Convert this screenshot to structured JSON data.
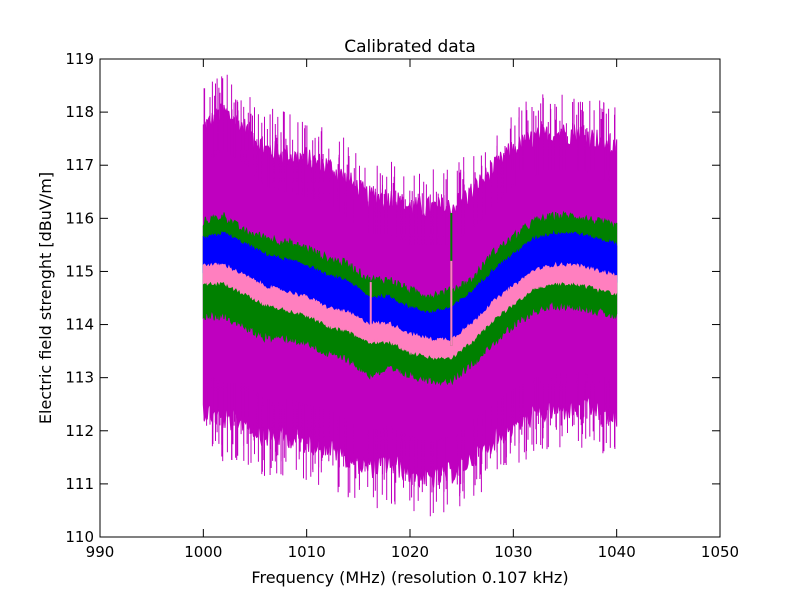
{
  "chart_data": {
    "type": "area",
    "title": "Calibrated data",
    "xlabel": "Frequency (MHz) (resolution 0.107 kHz)",
    "ylabel": "Electric field strenght  [dBuV/m]",
    "xlim": [
      990,
      1050
    ],
    "ylim": [
      110,
      119
    ],
    "xticks": [
      "990",
      "1000",
      "1010",
      "1020",
      "1030",
      "1040",
      "1050"
    ],
    "yticks": [
      "110",
      "111",
      "112",
      "113",
      "114",
      "115",
      "116",
      "117",
      "118",
      "119"
    ],
    "grid": false,
    "x": [
      1000,
      1002,
      1004,
      1006,
      1008,
      1010,
      1012,
      1014,
      1016,
      1018,
      1020,
      1022,
      1024,
      1026,
      1028,
      1030,
      1032,
      1034,
      1036,
      1038,
      1040
    ],
    "series": [
      {
        "color": "#bf00bf",
        "upper": [
          117.6,
          117.9,
          117.6,
          117.2,
          117.1,
          117.0,
          116.9,
          116.6,
          116.3,
          116.3,
          116.1,
          116.1,
          116.1,
          116.4,
          116.8,
          117.2,
          117.4,
          117.5,
          117.5,
          117.4,
          117.2
        ],
        "lower": [
          112.5,
          112.3,
          112.3,
          112.0,
          112.0,
          111.9,
          111.8,
          111.6,
          111.4,
          111.5,
          111.3,
          111.2,
          111.3,
          111.6,
          111.9,
          112.2,
          112.4,
          112.5,
          112.5,
          112.5,
          112.3
        ]
      },
      {
        "color": "#008000",
        "upper": [
          115.9,
          116.0,
          115.7,
          115.6,
          115.5,
          115.4,
          115.2,
          115.1,
          114.8,
          114.8,
          114.6,
          114.5,
          114.6,
          114.8,
          115.3,
          115.6,
          115.9,
          116.0,
          116.0,
          115.9,
          115.8
        ],
        "lower": [
          114.2,
          114.2,
          114.0,
          113.8,
          113.8,
          113.7,
          113.5,
          113.4,
          113.1,
          113.2,
          113.1,
          113.0,
          113.0,
          113.3,
          113.7,
          114.0,
          114.3,
          114.4,
          114.4,
          114.3,
          114.2
        ]
      },
      {
        "color": "#0000ff",
        "upper": [
          115.6,
          115.7,
          115.5,
          115.3,
          115.2,
          115.1,
          114.9,
          114.8,
          114.5,
          114.5,
          114.3,
          114.2,
          114.3,
          114.6,
          115.0,
          115.3,
          115.6,
          115.7,
          115.7,
          115.6,
          115.5
        ],
        "lower": [
          115.0,
          115.1,
          114.8,
          114.6,
          114.6,
          114.5,
          114.3,
          114.1,
          113.9,
          113.9,
          113.7,
          113.6,
          113.6,
          113.9,
          114.3,
          114.6,
          114.9,
          115.0,
          115.0,
          114.9,
          114.8
        ]
      },
      {
        "color": "#ff7fbf",
        "upper": [
          115.1,
          115.1,
          114.9,
          114.7,
          114.6,
          114.5,
          114.3,
          114.2,
          114.0,
          114.0,
          113.8,
          113.7,
          113.7,
          114.0,
          114.4,
          114.7,
          115.0,
          115.1,
          115.1,
          115.0,
          114.9
        ],
        "lower": [
          114.8,
          114.8,
          114.6,
          114.4,
          114.3,
          114.2,
          114.0,
          113.9,
          113.7,
          113.7,
          113.5,
          113.4,
          113.4,
          113.7,
          114.1,
          114.4,
          114.7,
          114.8,
          114.8,
          114.7,
          114.6
        ]
      }
    ],
    "spikes": [
      {
        "x": 1016.2,
        "low": 114.0,
        "high": 114.8,
        "color": "#ff7fbf"
      },
      {
        "x": 1024.0,
        "low": 113.6,
        "high": 116.1,
        "color": "#008000"
      },
      {
        "x": 1024.0,
        "low": 113.6,
        "high": 115.2,
        "color": "#ff7fbf"
      }
    ]
  }
}
